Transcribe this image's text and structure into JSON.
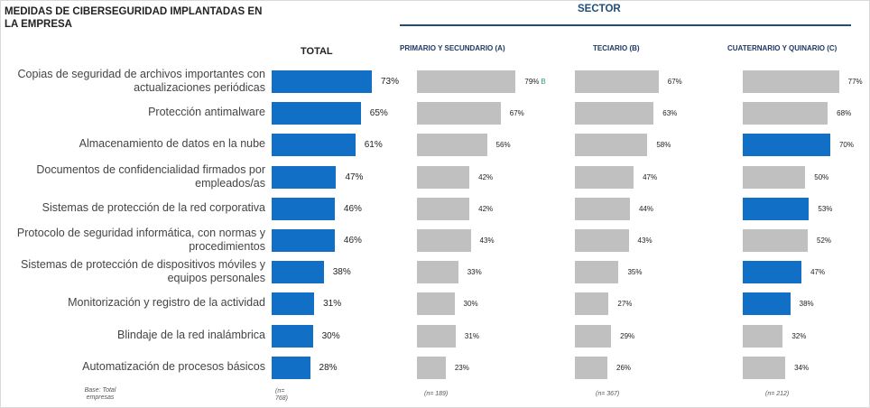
{
  "title": "MEDIDAS DE CIBERSEGURIDAD IMPLANTADAS EN LA EMPRESA",
  "sector_title": "SECTOR",
  "colors": {
    "highlight": "#1170c6",
    "neutral": "#c0c0c0",
    "heading": "#1f3864"
  },
  "base_label": "Base: Total empresas",
  "chart_data": {
    "type": "bar",
    "orientation": "horizontal",
    "categories": [
      "Copias de seguridad de archivos importantes con actualizaciones periódicas",
      "Protección antimalware",
      "Almacenamiento de datos en la nube",
      "Documentos de confidencialidad firmados por empleados/as",
      "Sistemas de protección de la red corporativa",
      "Protocolo de seguridad informática, con normas y procedimientos",
      "Sistemas de protección de dispositivos móviles y equipos personales",
      "Monitorización y registro de la actividad",
      "Blindaje de la red inalámbrica",
      "Automatización de procesos básicos"
    ],
    "series": [
      {
        "name": "TOTAL",
        "base": "(n= 768)",
        "values": [
          73,
          65,
          61,
          47,
          46,
          46,
          38,
          31,
          30,
          28
        ],
        "labels": [
          "73%",
          "65%",
          "61%",
          "47%",
          "46%",
          "46%",
          "38%",
          "31%",
          "30%",
          "28%"
        ],
        "highlight": [
          true,
          true,
          true,
          true,
          true,
          true,
          true,
          true,
          true,
          true
        ],
        "sig": [
          "",
          "",
          "",
          "",
          "",
          "",
          "",
          "",
          "",
          ""
        ]
      },
      {
        "name": "PRIMARIO Y SECUNDARIO (A)",
        "base": "(n= 189)",
        "values": [
          79,
          67,
          56,
          42,
          42,
          43,
          33,
          30,
          31,
          23
        ],
        "labels": [
          "79%",
          "67%",
          "56%",
          "42%",
          "42%",
          "43%",
          "33%",
          "30%",
          "31%",
          "23%"
        ],
        "highlight": [
          false,
          false,
          false,
          false,
          false,
          false,
          false,
          false,
          false,
          false
        ],
        "sig": [
          "B",
          "",
          "",
          "",
          "",
          "",
          "",
          "",
          "",
          ""
        ]
      },
      {
        "name": "TECIARIO (B)",
        "base": "(n= 367)",
        "values": [
          67,
          63,
          58,
          47,
          44,
          43,
          35,
          27,
          29,
          26
        ],
        "labels": [
          "67%",
          "63%",
          "58%",
          "47%",
          "44%",
          "43%",
          "35%",
          "27%",
          "29%",
          "26%"
        ],
        "highlight": [
          false,
          false,
          false,
          false,
          false,
          false,
          false,
          false,
          false,
          false
        ],
        "sig": [
          "",
          "",
          "",
          "",
          "",
          "",
          "",
          "",
          "",
          ""
        ]
      },
      {
        "name": "CUATERNARIO Y QUINARIO (C)",
        "base": "(n= 212)",
        "values": [
          77,
          68,
          70,
          50,
          53,
          52,
          47,
          38,
          32,
          34
        ],
        "labels": [
          "77%",
          "68%",
          "70%",
          "50%",
          "53%",
          "52%",
          "47%",
          "38%",
          "32%",
          "34%"
        ],
        "highlight": [
          false,
          false,
          true,
          false,
          true,
          false,
          true,
          true,
          false,
          false
        ],
        "sig": [
          "",
          "",
          "",
          "",
          "",
          "",
          "",
          "",
          "",
          ""
        ]
      }
    ]
  }
}
